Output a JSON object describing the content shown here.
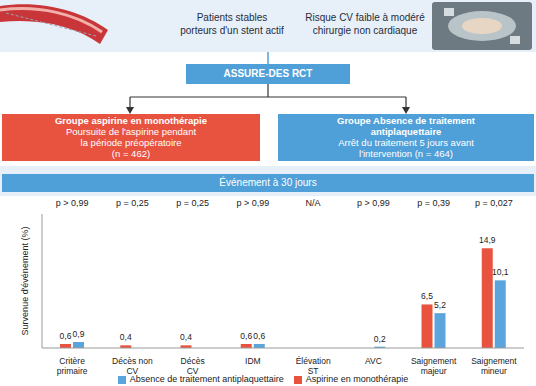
{
  "header": {
    "left": [
      "Patients stables",
      "porteurs d'un stent actif"
    ],
    "right": [
      "Risque CV faible à modéré",
      "chirurgie non cardiaque"
    ]
  },
  "trial": "ASSURE-DES RCT",
  "groups": [
    {
      "title": [
        "Groupe aspirine en monothérapie"
      ],
      "text": [
        "Poursuite de l'aspirine pendant",
        "la période préopératoire",
        "(n = 462)"
      ],
      "color": "#e8533f"
    },
    {
      "title": [
        "Groupe Absence de traitement",
        "antiplaquettaire"
      ],
      "text": [
        "Arrêt du traitement 5 jours avant",
        "l'intervention (n = 464)"
      ],
      "color": "#4f9fd8"
    }
  ],
  "chart_data": {
    "type": "bar",
    "title": "Événement à 30 jours",
    "ylabel": "Survenue d'événement (%)",
    "categories": [
      "Critère primaire",
      "Décès non CV",
      "Décès CV",
      "IDM",
      "Élévation ST",
      "AVC",
      "Saignement majeur",
      "Saignement mineur"
    ],
    "p_values": [
      "p > 0,99",
      "p = 0,25",
      "p = 0,25",
      "p > 0,99",
      "N/A",
      "p > 0,99",
      "p = 0,39",
      "p = 0,027"
    ],
    "series": [
      {
        "name": "Aspirine en monothérapie",
        "color": "#e8533f",
        "values": [
          0.6,
          0.4,
          0.4,
          0.6,
          0,
          0,
          6.5,
          14.9
        ],
        "value_labels": [
          "0,6",
          "0,4",
          "0,4",
          "0,6",
          "0",
          "0",
          "6,5",
          "14,9"
        ]
      },
      {
        "name": "Absence de traitement antiplaquettaire",
        "color": "#5ba5dc",
        "values": [
          0.9,
          0,
          0,
          0.6,
          0,
          0.2,
          5.2,
          10.1
        ],
        "value_labels": [
          "0,9",
          "0",
          "0",
          "0,6",
          "0",
          "0,2",
          "5,2",
          "10,1"
        ]
      }
    ],
    "ylim": [
      0,
      20
    ],
    "data_labels": true,
    "tick_labels": "x",
    "grid": false,
    "legend": "bottom"
  }
}
